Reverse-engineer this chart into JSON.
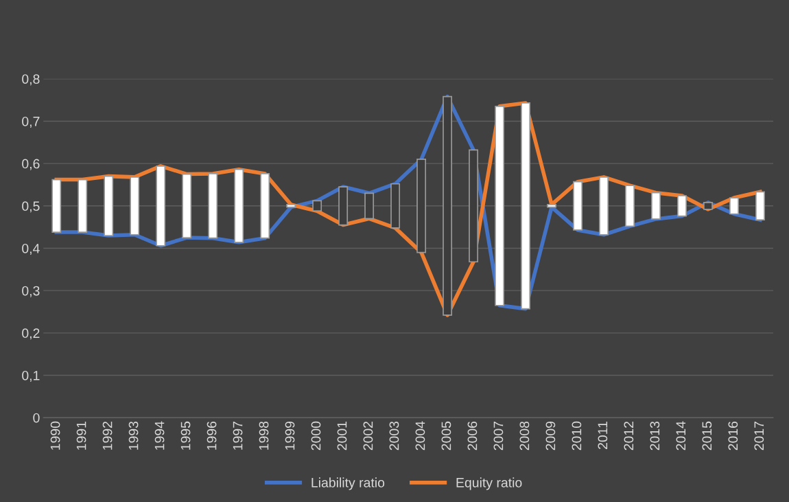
{
  "chart_data": {
    "type": "line",
    "categories": [
      "1990",
      "1991",
      "1992",
      "1993",
      "1994",
      "1995",
      "1996",
      "1997",
      "1998",
      "1999",
      "2000",
      "2001",
      "2002",
      "2003",
      "2004",
      "2005",
      "2006",
      "2007",
      "2008",
      "2009",
      "2010",
      "2011",
      "2012",
      "2013",
      "2014",
      "2015",
      "2016",
      "2017"
    ],
    "series": [
      {
        "name": "Liability ratio",
        "color": "#4472c4",
        "values": [
          0.438,
          0.438,
          0.43,
          0.432,
          0.406,
          0.425,
          0.424,
          0.414,
          0.424,
          0.497,
          0.512,
          0.545,
          0.53,
          0.552,
          0.61,
          0.758,
          0.632,
          0.265,
          0.257,
          0.497,
          0.443,
          0.432,
          0.452,
          0.469,
          0.476,
          0.508,
          0.481,
          0.467
        ]
      },
      {
        "name": "Equity ratio",
        "color": "#ed7d31",
        "values": [
          0.562,
          0.562,
          0.57,
          0.568,
          0.594,
          0.575,
          0.576,
          0.586,
          0.576,
          0.503,
          0.488,
          0.455,
          0.47,
          0.448,
          0.39,
          0.242,
          0.368,
          0.735,
          0.743,
          0.503,
          0.557,
          0.568,
          0.548,
          0.531,
          0.524,
          0.492,
          0.519,
          0.533
        ]
      },
      {
        "type": "bar",
        "base": [
          0.438,
          0.438,
          0.43,
          0.432,
          0.406,
          0.425,
          0.424,
          0.414,
          0.424,
          0.497,
          0.512,
          0.545,
          0.53,
          0.552,
          0.61,
          0.758,
          0.632,
          0.265,
          0.257,
          0.497,
          0.443,
          0.432,
          0.452,
          0.469,
          0.476,
          0.508,
          0.481,
          0.467
        ],
        "values": [
          0.124,
          0.124,
          0.14,
          0.136,
          0.188,
          0.15,
          0.152,
          0.172,
          0.152,
          0.006,
          -0.024,
          -0.09,
          -0.06,
          -0.104,
          -0.22,
          -0.516,
          -0.264,
          0.47,
          0.486,
          0.006,
          0.114,
          0.136,
          0.096,
          0.062,
          0.048,
          -0.016,
          0.038,
          0.066
        ],
        "colors": [
          "#ffffff",
          "#ffffff",
          "#ffffff",
          "#ffffff",
          "#ffffff",
          "#ffffff",
          "#ffffff",
          "#ffffff",
          "#ffffff",
          "#ffffff",
          "#3c3c3c",
          "#3c3c3c",
          "#3c3c3c",
          "#3c3c3c",
          "#3c3c3c",
          "#3c3c3c",
          "#3c3c3c",
          "#ffffff",
          "#ffffff",
          "#ffffff",
          "#ffffff",
          "#ffffff",
          "#ffffff",
          "#ffffff",
          "#ffffff",
          "#3c3c3c",
          "#ffffff",
          "#ffffff"
        ]
      }
    ],
    "ylim": [
      0,
      0.8
    ],
    "yticks": [
      0,
      {
        "value": 0.1,
        "label": "0,1"
      },
      {
        "value": 0.2,
        "label": "0,2"
      },
      {
        "value": 0.3,
        "label": "0,3"
      },
      {
        "value": 0.4,
        "label": "0,4"
      },
      {
        "value": 0.5,
        "label": "0,5"
      },
      {
        "value": 0.6,
        "label": "0,6"
      },
      {
        "value": 0.7,
        "label": "0,7"
      },
      {
        "value": 0.8,
        "label": "0,8"
      }
    ],
    "grid": "y",
    "legend": "bottom",
    "marker": "none",
    "line_style": "solid"
  }
}
